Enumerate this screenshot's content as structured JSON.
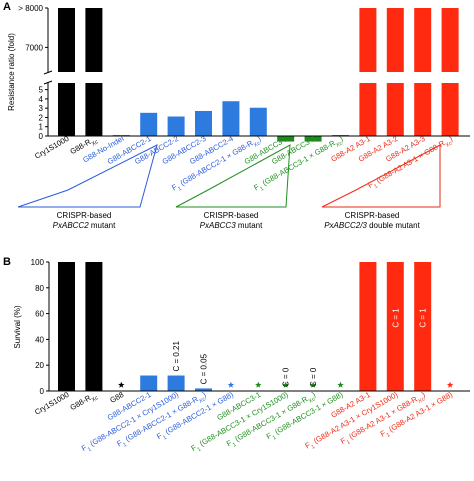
{
  "chart_data": [
    {
      "panel": "A",
      "type": "bar",
      "ylabel": "Resistance ratio (fold)",
      "yticks_lower": [
        "0",
        "1",
        "2",
        "3",
        "4",
        "5"
      ],
      "yticks_upper": [
        "7000",
        "> 8000"
      ],
      "axis_break": true,
      "ylim_lower": [
        0,
        5.5
      ],
      "ylim_upper": [
        6400,
        8000
      ],
      "categories": [
        {
          "text": "Cry1S1000",
          "color": "#000000"
        },
        {
          "text": "G88-R",
          "sub": "Xc",
          "color": "#000000"
        },
        {
          "text": "G88-No-Indel",
          "color": "#2b5bd9"
        },
        {
          "text": "G88-ABCC2-1",
          "color": "#2b5bd9"
        },
        {
          "text": "G88-ABCC2-2",
          "color": "#2b5bd9"
        },
        {
          "text": "G88-ABCC2-3",
          "color": "#2b5bd9"
        },
        {
          "text": "G88-ABCC2-4",
          "color": "#2b5bd9"
        },
        {
          "text": "F",
          "sub": "1",
          "text2": " (G88-ABCC2-1 × G88-R",
          "sub2": "Xc",
          "text3": ")",
          "color": "#2b5bd9"
        },
        {
          "text": "G88-ABCC3-1",
          "color": "#1f8f1f"
        },
        {
          "text": "G88-ABCC3-2",
          "color": "#1f8f1f"
        },
        {
          "text": "F",
          "sub": "1",
          "text2": " (G88-ABCC3-1 × G88-R",
          "sub2": "Xc",
          "text3": ")",
          "color": "#1f8f1f"
        },
        {
          "text": "G88-A2 A3-1",
          "color": "#ef2a14"
        },
        {
          "text": "G88-A2 A3-2",
          "color": "#ef2a14"
        },
        {
          "text": "G88-A2 A3-3",
          "color": "#ef2a14"
        },
        {
          "text": "F",
          "sub": "1",
          "text2": " (G88-A2 A3-1 × G88-R",
          "sub2": "Xc",
          "text3": ")",
          "color": "#ef2a14"
        }
      ],
      "values": [
        8000,
        8000,
        0.1,
        2.5,
        2.1,
        2.7,
        3.75,
        3.05,
        -0.6,
        -0.6,
        0.1,
        8000,
        8000,
        8000,
        8000
      ],
      "bar_colors": [
        "#000000",
        "#000000",
        "#2e7be0",
        "#2e7be0",
        "#2e7be0",
        "#2e7be0",
        "#2e7be0",
        "#2e7be0",
        "#1e8a1e",
        "#1e8a1e",
        "#1e8a1e",
        "#ff2a10",
        "#ff2a10",
        "#ff2a10",
        "#ff2a10"
      ],
      "groups": [
        {
          "line1": "CRISPR-based",
          "line2": "PxABCC2",
          "line2_suffix": " mutant",
          "color": "#2b5bd9"
        },
        {
          "line1": "CRISPR-based",
          "line2": "PxABCC3",
          "line2_suffix": " mutant",
          "color": "#1f8f1f"
        },
        {
          "line1": "CRISPR-based",
          "line2": "PxABCC2/3",
          "line2_suffix": " double mutant",
          "color": "#ef2a14"
        }
      ]
    },
    {
      "panel": "B",
      "type": "bar",
      "ylabel": "Survival (%)",
      "ylim": [
        0,
        100
      ],
      "yticks": [
        "0",
        "20",
        "40",
        "60",
        "80",
        "100"
      ],
      "categories": [
        {
          "text": "Cry1S1000",
          "color": "#000000"
        },
        {
          "text": "G88-R",
          "sub": "Xc",
          "color": "#000000"
        },
        {
          "text": "G88",
          "color": "#000000"
        },
        {
          "text": "G88-ABCC2-1",
          "color": "#2b5bd9"
        },
        {
          "text": "F",
          "sub": "1",
          "text2": " (G88-ABCC2-1 × Cry1S1000)",
          "color": "#2b5bd9"
        },
        {
          "text": "F",
          "sub": "1",
          "text2": " (G88-ABCC2-1 × G88-R",
          "sub2": "Xc",
          "text3": ")",
          "color": "#2b5bd9"
        },
        {
          "text": "F",
          "sub": "1",
          "text2": " (G88-ABCC2-1 × G88)",
          "color": "#2b5bd9"
        },
        {
          "text": "G88-ABCC3-1",
          "color": "#1f8f1f"
        },
        {
          "text": "F",
          "sub": "1",
          "text2": " (G88-ABCC3-1 × Cry1S1000)",
          "color": "#1f8f1f"
        },
        {
          "text": "F",
          "sub": "1",
          "text2": " (G88-ABCC3-1 × G88-R",
          "sub2": "Xc",
          "text3": ")",
          "color": "#1f8f1f"
        },
        {
          "text": "F",
          "sub": "1",
          "text2": " (G88-ABCC3-1 × G88)",
          "color": "#1f8f1f"
        },
        {
          "text": "G88-A2 A3-1",
          "color": "#ef2a14"
        },
        {
          "text": "F",
          "sub": "1",
          "text2": " (G88-A2 A3-1 × Cry1S1000)",
          "color": "#ef2a14"
        },
        {
          "text": "F",
          "sub": "1",
          "text2": " (G88-A2 A3-1 × G88-R",
          "sub2": "Xc",
          "text3": ")",
          "color": "#ef2a14"
        },
        {
          "text": "F",
          "sub": "1",
          "text2": " (G88-A2 A3-1 × G88)",
          "color": "#ef2a14"
        }
      ],
      "values": [
        100,
        100,
        0,
        12,
        12,
        2,
        0,
        0,
        0,
        0,
        0,
        100,
        100,
        100,
        0
      ],
      "bar_colors": [
        "#000000",
        "#000000",
        "#000000",
        "#2e7be0",
        "#2e7be0",
        "#2e7be0",
        "#2e7be0",
        "#1e8a1e",
        "#1e8a1e",
        "#1e8a1e",
        "#1e8a1e",
        "#ff2a10",
        "#ff2a10",
        "#ff2a10",
        "#ff2a10"
      ],
      "stars": [
        {
          "index": 2,
          "color": "#000000"
        },
        {
          "index": 6,
          "color": "#2e7be0"
        },
        {
          "index": 7,
          "color": "#1e8a1e"
        },
        {
          "index": 8,
          "color": "#1e8a1e"
        },
        {
          "index": 9,
          "color": "#1e8a1e"
        },
        {
          "index": 10,
          "color": "#1e8a1e"
        },
        {
          "index": 14,
          "color": "#ff2a10"
        }
      ],
      "annotations": [
        {
          "index": 4,
          "text": "C = 0.21",
          "color": "#000000",
          "inside": false
        },
        {
          "index": 5,
          "text": "C = 0.05",
          "color": "#000000",
          "inside": false
        },
        {
          "index": 8,
          "text": "C = 0",
          "color": "#000000",
          "inside": false
        },
        {
          "index": 9,
          "text": "C = 0",
          "color": "#000000",
          "inside": false
        },
        {
          "index": 12,
          "text": "C = 1",
          "color": "#ffffff",
          "inside": true
        },
        {
          "index": 13,
          "text": "C = 1",
          "color": "#ffffff",
          "inside": true
        }
      ]
    }
  ]
}
